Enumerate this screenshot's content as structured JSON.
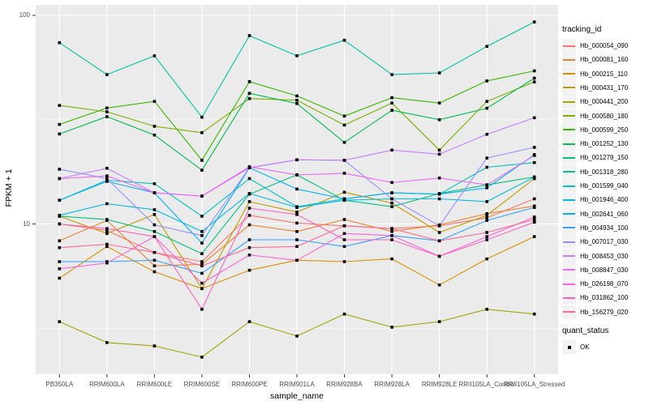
{
  "figure": {
    "background": "#ffffff",
    "panel_bg": "#ebebeb",
    "grid_color": "#ffffff",
    "tick_mark_color": "#333333",
    "tick_text_color": "#4d4d4d",
    "point_color": "#000000",
    "legend_key_bg": "#f2f2f2"
  },
  "chart_data": {
    "type": "line",
    "title": "",
    "xlabel": "sample_name",
    "ylabel": "FPKM + 1",
    "y_scale": "log10",
    "grid": true,
    "legend_position": "right",
    "point_shape": "filled-square",
    "ylim": [
      1.9,
      112
    ],
    "y_major_ticks": [
      10,
      100
    ],
    "y_minor_ticks": [
      3.162,
      31.623
    ],
    "categories": [
      "PB350LA",
      "RRIM600LA",
      "RRIM600LE",
      "RRIM600SE",
      "RRIM600PE",
      "RRIM901LA",
      "RRIM928BA",
      "RRIM928LA",
      "RRIM928LE",
      "RRII105LA_Control",
      "RRII105LA_Stressed"
    ],
    "series": [
      {
        "name": "Hb_000054_090",
        "color": "#F8766D",
        "values": [
          10.0,
          9.3,
          7.3,
          6.6,
          11.0,
          10.1,
          9.8,
          9.5,
          9.8,
          10.7,
          13.2
        ]
      },
      {
        "name": "Hb_000081_160",
        "color": "#EA8331",
        "values": [
          8.3,
          10.4,
          6.3,
          6.4,
          9.9,
          9.2,
          10.5,
          9.2,
          9.9,
          11.2,
          12.2
        ]
      },
      {
        "name": "Hb_000215_110",
        "color": "#D89000",
        "values": [
          5.5,
          7.8,
          5.9,
          4.9,
          6.0,
          6.7,
          6.6,
          6.8,
          5.1,
          6.8,
          8.7
        ]
      },
      {
        "name": "Hb_000431_170",
        "color": "#C09B00",
        "values": [
          10.9,
          9.0,
          11.1,
          4.9,
          12.8,
          11.4,
          14.2,
          12.6,
          9.1,
          11.0,
          16.5
        ]
      },
      {
        "name": "Hb_000441_200",
        "color": "#A3A500",
        "values": [
          3.4,
          2.7,
          2.6,
          2.3,
          3.4,
          2.9,
          3.7,
          3.2,
          3.4,
          3.9,
          3.7
        ]
      },
      {
        "name": "Hb_000580_180",
        "color": "#7CAE00",
        "values": [
          37.0,
          34.5,
          29.4,
          27.4,
          39.9,
          39.2,
          29.8,
          38.0,
          22.6,
          38.7,
          48.0
        ]
      },
      {
        "name": "Hb_000599_250",
        "color": "#39B600",
        "values": [
          30.0,
          36.0,
          38.7,
          20.2,
          48.1,
          41.1,
          32.9,
          40.3,
          38.0,
          48.5,
          54.2
        ]
      },
      {
        "name": "Hb_001252_130",
        "color": "#00BB4E",
        "values": [
          27.0,
          32.7,
          26.7,
          18.1,
          42.3,
          37.8,
          24.6,
          35.1,
          31.6,
          35.9,
          50.0
        ]
      },
      {
        "name": "Hb_001279_150",
        "color": "#00BF7D",
        "values": [
          10.9,
          10.5,
          9.2,
          7.2,
          13.9,
          17.2,
          13.0,
          12.1,
          14.0,
          15.4,
          16.8
        ]
      },
      {
        "name": "Hb_001318_280",
        "color": "#00C1A3",
        "values": [
          74.0,
          52.0,
          64.0,
          32.5,
          80.0,
          64.0,
          76.0,
          52.0,
          53.0,
          71.0,
          93.0
        ]
      },
      {
        "name": "Hb_001599_040",
        "color": "#00BFC4",
        "values": [
          13.0,
          16.2,
          15.6,
          10.9,
          16.5,
          12.1,
          13.2,
          14.1,
          13.9,
          18.7,
          19.7
        ]
      },
      {
        "name": "Hb_001946_400",
        "color": "#00BAE0",
        "values": [
          11.0,
          12.5,
          11.7,
          9.2,
          14.0,
          12.0,
          13.0,
          13.2,
          13.2,
          12.8,
          16.8
        ]
      },
      {
        "name": "Hb_002641_060",
        "color": "#00B0F6",
        "values": [
          13.0,
          16.0,
          14.1,
          8.1,
          18.6,
          14.7,
          13.2,
          14.1,
          13.9,
          14.9,
          21.5
        ]
      },
      {
        "name": "Hb_004934_100",
        "color": "#35A2FF",
        "values": [
          6.6,
          6.6,
          6.7,
          5.8,
          8.4,
          8.4,
          7.8,
          8.8,
          8.3,
          10.4,
          12.0
        ]
      },
      {
        "name": "Hb_007017_030",
        "color": "#9590FF",
        "values": [
          18.3,
          16.5,
          9.9,
          8.8,
          18.6,
          20.3,
          20.2,
          13.2,
          9.8,
          20.7,
          23.3
        ]
      },
      {
        "name": "Hb_008453_030",
        "color": "#C77CFF",
        "values": [
          16.5,
          18.5,
          14.1,
          13.6,
          18.6,
          20.3,
          20.2,
          22.6,
          21.6,
          26.9,
          32.3
        ]
      },
      {
        "name": "Hb_008847_030",
        "color": "#E76BF3",
        "values": [
          16.5,
          17.0,
          14.1,
          13.6,
          18.8,
          17.2,
          17.5,
          15.8,
          16.6,
          15.4,
          21.3
        ]
      },
      {
        "name": "Hb_026198_070",
        "color": "#FA62DB",
        "values": [
          6.1,
          6.5,
          8.7,
          5.2,
          7.1,
          6.7,
          9.0,
          8.8,
          7.0,
          8.7,
          10.8
        ]
      },
      {
        "name": "Hb_031862_100",
        "color": "#FF62BC",
        "values": [
          10.0,
          9.5,
          8.7,
          3.9,
          11.9,
          11.1,
          8.4,
          8.4,
          7.0,
          8.4,
          10.2
        ]
      },
      {
        "name": "Hb_156279_020",
        "color": "#FF6A98",
        "values": [
          7.7,
          8.0,
          7.3,
          6.3,
          7.7,
          7.8,
          9.8,
          9.5,
          8.3,
          9.1,
          10.5
        ]
      }
    ],
    "legend": {
      "tracking_title": "tracking_id",
      "quant_title": "quant_status",
      "quant_items": [
        {
          "label": "OK",
          "shape": "square",
          "color": "#000000"
        }
      ]
    }
  }
}
